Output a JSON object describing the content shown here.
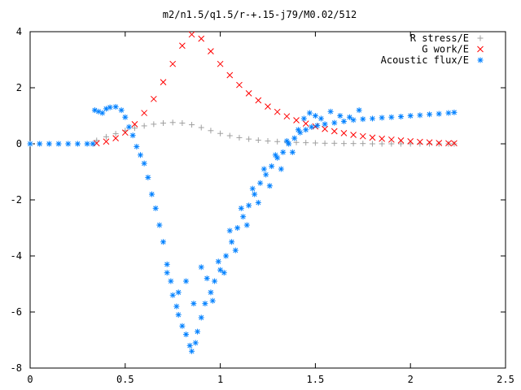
{
  "chart_data": {
    "type": "scatter",
    "title": "m2/n1.5/q1.5/r-+.15-j79/M0.02/512",
    "xlabel": "",
    "ylabel": "",
    "xlim": [
      0,
      2.5
    ],
    "ylim": [
      -8,
      4
    ],
    "x_ticks": [
      0,
      0.5,
      1,
      1.5,
      2,
      2.5
    ],
    "x_tick_labels": [
      "0",
      "0.5",
      "1",
      "1.5",
      "2",
      "2.5"
    ],
    "y_ticks": [
      -8,
      -6,
      -4,
      -2,
      0,
      2,
      4
    ],
    "y_tick_labels": [
      "-8",
      "-6",
      "-4",
      "-2",
      "0",
      "2",
      "4"
    ],
    "grid": false,
    "legend_position": "top-right",
    "series": [
      {
        "name": "R stress/E",
        "marker": "plus",
        "color": "#a0a0a0",
        "points": [
          [
            0.35,
            0.12
          ],
          [
            0.4,
            0.25
          ],
          [
            0.45,
            0.36
          ],
          [
            0.5,
            0.47
          ],
          [
            0.55,
            0.56
          ],
          [
            0.6,
            0.64
          ],
          [
            0.65,
            0.7
          ],
          [
            0.7,
            0.74
          ],
          [
            0.75,
            0.76
          ],
          [
            0.8,
            0.74
          ],
          [
            0.85,
            0.68
          ],
          [
            0.9,
            0.58
          ],
          [
            0.95,
            0.47
          ],
          [
            1.0,
            0.37
          ],
          [
            1.05,
            0.29
          ],
          [
            1.1,
            0.22
          ],
          [
            1.15,
            0.17
          ],
          [
            1.2,
            0.13
          ],
          [
            1.25,
            0.1
          ],
          [
            1.3,
            0.08
          ],
          [
            1.35,
            0.06
          ],
          [
            1.4,
            0.05
          ],
          [
            1.45,
            0.04
          ],
          [
            1.5,
            0.03
          ],
          [
            1.55,
            0.02
          ],
          [
            1.6,
            0.02
          ],
          [
            1.65,
            0.01
          ],
          [
            1.7,
            0.01
          ],
          [
            1.75,
            0.01
          ],
          [
            1.8,
            0.0
          ],
          [
            1.85,
            0.0
          ],
          [
            1.9,
            0.0
          ],
          [
            1.95,
            0.0
          ],
          [
            2.0,
            0.0
          ],
          [
            2.05,
            0.0
          ],
          [
            2.1,
            0.0
          ],
          [
            2.15,
            0.0
          ],
          [
            2.2,
            0.0
          ],
          [
            2.23,
            0.0
          ]
        ]
      },
      {
        "name": "G work/E",
        "marker": "cross",
        "color": "#ff0000",
        "points": [
          [
            0.35,
            0.02
          ],
          [
            0.4,
            0.08
          ],
          [
            0.45,
            0.2
          ],
          [
            0.5,
            0.4
          ],
          [
            0.55,
            0.7
          ],
          [
            0.6,
            1.1
          ],
          [
            0.65,
            1.6
          ],
          [
            0.7,
            2.2
          ],
          [
            0.75,
            2.85
          ],
          [
            0.8,
            3.5
          ],
          [
            0.85,
            3.9
          ],
          [
            0.9,
            3.75
          ],
          [
            0.95,
            3.3
          ],
          [
            1.0,
            2.85
          ],
          [
            1.05,
            2.45
          ],
          [
            1.1,
            2.1
          ],
          [
            1.15,
            1.8
          ],
          [
            1.2,
            1.55
          ],
          [
            1.25,
            1.33
          ],
          [
            1.3,
            1.14
          ],
          [
            1.35,
            0.98
          ],
          [
            1.4,
            0.84
          ],
          [
            1.45,
            0.72
          ],
          [
            1.5,
            0.62
          ],
          [
            1.55,
            0.53
          ],
          [
            1.6,
            0.45
          ],
          [
            1.65,
            0.38
          ],
          [
            1.7,
            0.32
          ],
          [
            1.75,
            0.27
          ],
          [
            1.8,
            0.22
          ],
          [
            1.85,
            0.18
          ],
          [
            1.9,
            0.15
          ],
          [
            1.95,
            0.12
          ],
          [
            2.0,
            0.09
          ],
          [
            2.05,
            0.07
          ],
          [
            2.1,
            0.05
          ],
          [
            2.15,
            0.03
          ],
          [
            2.2,
            0.02
          ],
          [
            2.23,
            0.02
          ]
        ]
      },
      {
        "name": "Acoustic flux/E",
        "marker": "star",
        "color": "#0080ff",
        "points": [
          [
            0.0,
            0.0
          ],
          [
            0.05,
            0.0
          ],
          [
            0.1,
            0.0
          ],
          [
            0.15,
            0.0
          ],
          [
            0.2,
            0.0
          ],
          [
            0.25,
            0.0
          ],
          [
            0.3,
            0.0
          ],
          [
            0.33,
            0.0
          ],
          [
            0.34,
            1.2
          ],
          [
            0.36,
            1.15
          ],
          [
            0.38,
            1.1
          ],
          [
            0.4,
            1.25
          ],
          [
            0.42,
            1.3
          ],
          [
            0.45,
            1.32
          ],
          [
            0.48,
            1.2
          ],
          [
            0.5,
            0.95
          ],
          [
            0.52,
            0.6
          ],
          [
            0.54,
            0.3
          ],
          [
            0.56,
            -0.1
          ],
          [
            0.58,
            -0.4
          ],
          [
            0.6,
            -0.7
          ],
          [
            0.62,
            -1.2
          ],
          [
            0.64,
            -1.8
          ],
          [
            0.66,
            -2.3
          ],
          [
            0.68,
            -2.9
          ],
          [
            0.7,
            -3.5
          ],
          [
            0.72,
            -4.3
          ],
          [
            0.74,
            -4.9
          ],
          [
            0.75,
            -5.4
          ],
          [
            0.77,
            -5.8
          ],
          [
            0.78,
            -6.1
          ],
          [
            0.8,
            -6.5
          ],
          [
            0.82,
            -6.8
          ],
          [
            0.84,
            -7.2
          ],
          [
            0.85,
            -7.4
          ],
          [
            0.87,
            -7.1
          ],
          [
            0.88,
            -6.7
          ],
          [
            0.9,
            -6.2
          ],
          [
            0.92,
            -5.7
          ],
          [
            0.95,
            -5.3
          ],
          [
            0.97,
            -4.9
          ],
          [
            1.0,
            -4.5
          ],
          [
            1.03,
            -4.0
          ],
          [
            1.06,
            -3.5
          ],
          [
            1.09,
            -3.0
          ],
          [
            1.12,
            -2.6
          ],
          [
            1.15,
            -2.2
          ],
          [
            1.18,
            -1.8
          ],
          [
            1.21,
            -1.4
          ],
          [
            1.24,
            -1.1
          ],
          [
            1.27,
            -0.8
          ],
          [
            1.3,
            -0.5
          ],
          [
            1.33,
            -0.3
          ],
          [
            1.36,
            0.0
          ],
          [
            1.39,
            0.2
          ],
          [
            1.42,
            0.4
          ],
          [
            1.45,
            0.5
          ],
          [
            1.48,
            0.6
          ],
          [
            1.51,
            0.65
          ],
          [
            1.55,
            0.7
          ],
          [
            1.6,
            0.75
          ],
          [
            1.65,
            0.8
          ],
          [
            1.7,
            0.85
          ],
          [
            1.75,
            0.88
          ],
          [
            1.8,
            0.9
          ],
          [
            1.85,
            0.93
          ],
          [
            1.9,
            0.95
          ],
          [
            1.95,
            0.97
          ],
          [
            2.0,
            1.0
          ],
          [
            2.05,
            1.02
          ],
          [
            2.1,
            1.05
          ],
          [
            2.15,
            1.07
          ],
          [
            2.2,
            1.1
          ],
          [
            2.23,
            1.12
          ],
          [
            0.72,
            -4.6
          ],
          [
            0.78,
            -5.3
          ],
          [
            0.82,
            -4.9
          ],
          [
            0.86,
            -5.7
          ],
          [
            0.9,
            -4.4
          ],
          [
            0.93,
            -4.8
          ],
          [
            0.96,
            -5.6
          ],
          [
            0.99,
            -4.2
          ],
          [
            1.02,
            -4.6
          ],
          [
            1.05,
            -3.1
          ],
          [
            1.08,
            -3.8
          ],
          [
            1.11,
            -2.3
          ],
          [
            1.14,
            -2.9
          ],
          [
            1.17,
            -1.6
          ],
          [
            1.2,
            -2.1
          ],
          [
            1.23,
            -0.9
          ],
          [
            1.26,
            -1.5
          ],
          [
            1.29,
            -0.4
          ],
          [
            1.32,
            -0.9
          ],
          [
            1.35,
            0.1
          ],
          [
            1.38,
            -0.3
          ],
          [
            1.41,
            0.5
          ],
          [
            1.44,
            0.9
          ],
          [
            1.47,
            1.1
          ],
          [
            1.5,
            1.0
          ],
          [
            1.53,
            0.9
          ],
          [
            1.58,
            1.15
          ],
          [
            1.63,
            1.0
          ],
          [
            1.68,
            0.95
          ],
          [
            1.73,
            1.2
          ]
        ]
      }
    ]
  }
}
